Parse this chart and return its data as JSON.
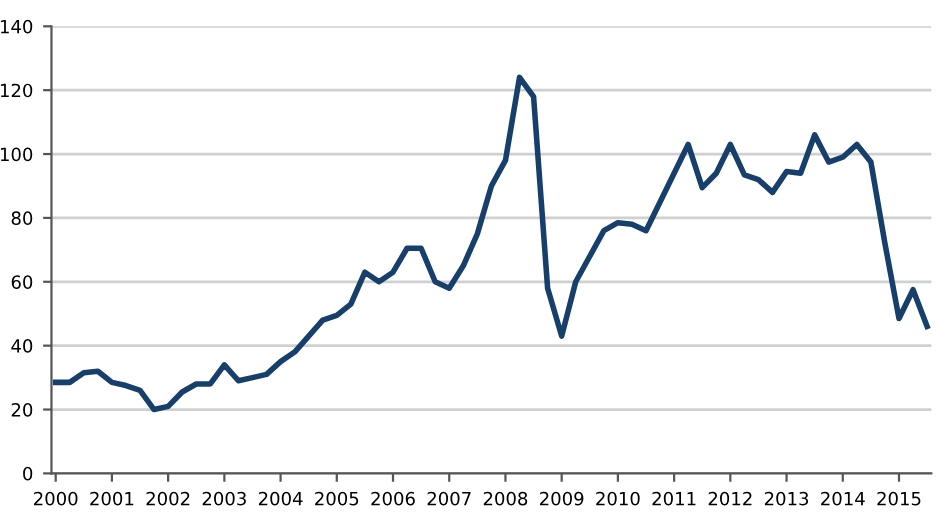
{
  "chart_data": {
    "type": "line",
    "categories": [
      "2000",
      null,
      null,
      null,
      "2001",
      null,
      null,
      null,
      "2002",
      null,
      null,
      null,
      "2003",
      null,
      null,
      null,
      "2004",
      null,
      null,
      null,
      "2005",
      null,
      null,
      null,
      "2006",
      null,
      null,
      null,
      "2007",
      null,
      null,
      null,
      "2008",
      null,
      null,
      null,
      "2009",
      null,
      null,
      null,
      "2010",
      null,
      null,
      null,
      "2011",
      null,
      null,
      null,
      "2012",
      null,
      null,
      null,
      "2013",
      null,
      null,
      null,
      "2014",
      null,
      null,
      null,
      "2015",
      null,
      null
    ],
    "series": [
      {
        "color": "#173f6b",
        "values": [
          28.5,
          28.5,
          31.5,
          32,
          28.5,
          27.5,
          26,
          20,
          21,
          25.5,
          28,
          28,
          34,
          29,
          30,
          31,
          35,
          38,
          43,
          48,
          49.5,
          53,
          63,
          60,
          63,
          70.5,
          70.5,
          60,
          58,
          65,
          75,
          90,
          98,
          124,
          118,
          58,
          43,
          60,
          68,
          76,
          78.5,
          78,
          76,
          85,
          94,
          103,
          89.5,
          94,
          103,
          93.5,
          92,
          88,
          94.5,
          94,
          106,
          97.5,
          99,
          103,
          97.5,
          72,
          48.5,
          57.5,
          46
        ]
      }
    ],
    "ylim": [
      0,
      140
    ],
    "yticks": [
      0,
      20,
      40,
      60,
      80,
      100,
      120,
      140
    ],
    "grid": "y",
    "line_style": "solid",
    "marker": "none"
  }
}
